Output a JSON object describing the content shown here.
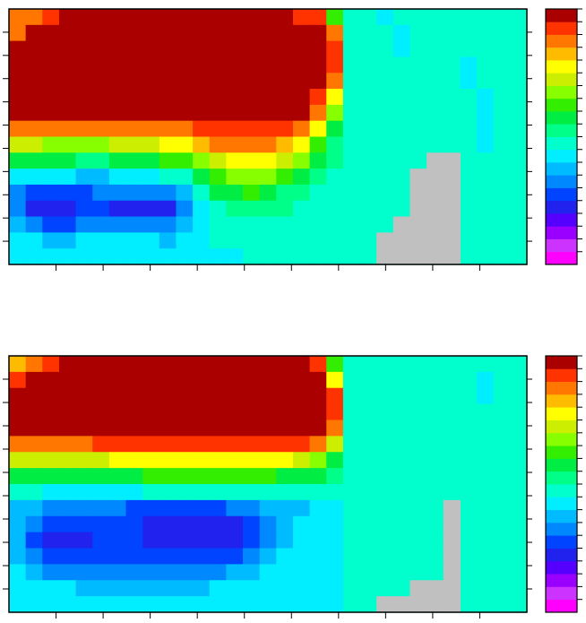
{
  "chart_data": [
    {
      "type": "heatmap",
      "title": "",
      "xlabel": "",
      "ylabel": "",
      "grid": false,
      "colorbar": {
        "levels": 20,
        "colors": [
          "#ff00ff",
          "#cc33ff",
          "#9900ff",
          "#5500ff",
          "#2222ee",
          "#0044ff",
          "#0088ff",
          "#00bbff",
          "#00eeff",
          "#00ffcc",
          "#00ff88",
          "#00ee44",
          "#33ee00",
          "#88ff00",
          "#ccee00",
          "#ffff00",
          "#ffbb00",
          "#ff7700",
          "#ff3300",
          "#ee0000"
        ]
      },
      "top_color": "#aa0000",
      "land_color": "#c0c0c0",
      "grid_values": [
        [
          17,
          17,
          18,
          19,
          19,
          19,
          19,
          19,
          19,
          19,
          19,
          19,
          19,
          19,
          19,
          19,
          19,
          18,
          18,
          12,
          9,
          9,
          8,
          9,
          9,
          9,
          9,
          9,
          9,
          9,
          9
        ],
        [
          17,
          19,
          19,
          19,
          19,
          19,
          19,
          19,
          19,
          19,
          19,
          19,
          19,
          19,
          19,
          19,
          19,
          19,
          19,
          17,
          9,
          9,
          9,
          8,
          9,
          9,
          9,
          9,
          9,
          9,
          9
        ],
        [
          19,
          19,
          19,
          19,
          19,
          19,
          19,
          19,
          19,
          19,
          19,
          19,
          19,
          19,
          19,
          19,
          19,
          19,
          19,
          18,
          9,
          9,
          9,
          8,
          9,
          9,
          9,
          9,
          9,
          9,
          9
        ],
        [
          19,
          19,
          19,
          19,
          19,
          19,
          19,
          19,
          19,
          19,
          19,
          19,
          19,
          19,
          19,
          19,
          19,
          19,
          19,
          18,
          9,
          9,
          9,
          9,
          9,
          9,
          9,
          8,
          9,
          9,
          9
        ],
        [
          19,
          19,
          19,
          19,
          19,
          19,
          19,
          19,
          19,
          19,
          19,
          19,
          19,
          19,
          19,
          19,
          19,
          19,
          19,
          17,
          9,
          9,
          9,
          9,
          9,
          9,
          9,
          8,
          9,
          9,
          9
        ],
        [
          19,
          19,
          19,
          19,
          19,
          19,
          19,
          19,
          19,
          19,
          19,
          19,
          19,
          19,
          19,
          19,
          19,
          19,
          18,
          15,
          9,
          9,
          9,
          9,
          9,
          9,
          9,
          9,
          8,
          9,
          9
        ],
        [
          19,
          19,
          19,
          19,
          19,
          19,
          19,
          19,
          19,
          19,
          19,
          19,
          19,
          19,
          19,
          19,
          19,
          19,
          17,
          13,
          9,
          9,
          9,
          9,
          9,
          9,
          9,
          9,
          8,
          9,
          9
        ],
        [
          17,
          17,
          17,
          17,
          17,
          17,
          17,
          17,
          17,
          17,
          17,
          18,
          18,
          18,
          18,
          18,
          18,
          17,
          15,
          11,
          9,
          9,
          9,
          9,
          9,
          9,
          9,
          9,
          8,
          9,
          9
        ],
        [
          14,
          14,
          13,
          13,
          13,
          13,
          14,
          14,
          14,
          15,
          15,
          16,
          17,
          17,
          17,
          17,
          16,
          15,
          12,
          10,
          9,
          9,
          9,
          9,
          9,
          9,
          9,
          9,
          8,
          9,
          9
        ],
        [
          11,
          11,
          11,
          11,
          10,
          10,
          11,
          11,
          11,
          12,
          12,
          13,
          14,
          15,
          15,
          15,
          14,
          13,
          11,
          10,
          9,
          9,
          9,
          9,
          9,
          9,
          9,
          9,
          9,
          9,
          9
        ],
        [
          8,
          8,
          8,
          8,
          7,
          7,
          8,
          8,
          8,
          9,
          9,
          11,
          12,
          13,
          13,
          13,
          12,
          11,
          10,
          9,
          9,
          9,
          9,
          9,
          9,
          9,
          9,
          9,
          9,
          9,
          9
        ],
        [
          6,
          5,
          5,
          5,
          5,
          6,
          6,
          6,
          6,
          6,
          7,
          9,
          11,
          11,
          12,
          11,
          10,
          10,
          9,
          9,
          9,
          9,
          9,
          9,
          9,
          9,
          9,
          9,
          9,
          9,
          9
        ],
        [
          6,
          4,
          4,
          4,
          5,
          5,
          4,
          4,
          4,
          4,
          6,
          8,
          9,
          10,
          10,
          10,
          10,
          9,
          9,
          9,
          9,
          9,
          9,
          9,
          9,
          9,
          9,
          9,
          9,
          9,
          9
        ],
        [
          7,
          6,
          5,
          5,
          6,
          6,
          6,
          6,
          6,
          6,
          7,
          8,
          9,
          9,
          9,
          9,
          9,
          9,
          9,
          9,
          9,
          9,
          9,
          9,
          9,
          9,
          9,
          9,
          9,
          9,
          9
        ],
        [
          8,
          8,
          7,
          7,
          8,
          8,
          8,
          8,
          8,
          7,
          8,
          8,
          9,
          9,
          9,
          9,
          9,
          9,
          9,
          9,
          9,
          9,
          9,
          9,
          9,
          9,
          9,
          9,
          9,
          9,
          9
        ],
        [
          8,
          8,
          8,
          8,
          8,
          8,
          8,
          8,
          8,
          8,
          8,
          8,
          8,
          8,
          9,
          9,
          9,
          9,
          9,
          9,
          9,
          9,
          9,
          9,
          9,
          9,
          9,
          9,
          9,
          9,
          9
        ]
      ],
      "land_cells": [
        [
          9,
          25
        ],
        [
          9,
          26
        ],
        [
          10,
          24
        ],
        [
          10,
          25
        ],
        [
          10,
          26
        ],
        [
          11,
          24
        ],
        [
          11,
          25
        ],
        [
          11,
          26
        ],
        [
          12,
          24
        ],
        [
          12,
          25
        ],
        [
          12,
          26
        ],
        [
          13,
          23
        ],
        [
          13,
          24
        ],
        [
          13,
          25
        ],
        [
          13,
          26
        ],
        [
          14,
          22
        ],
        [
          14,
          23
        ],
        [
          14,
          24
        ],
        [
          14,
          25
        ],
        [
          14,
          26
        ],
        [
          15,
          22
        ],
        [
          15,
          23
        ],
        [
          15,
          24
        ],
        [
          15,
          25
        ],
        [
          15,
          26
        ]
      ]
    },
    {
      "type": "heatmap",
      "title": "",
      "xlabel": "",
      "ylabel": "",
      "grid": false,
      "colorbar": {
        "levels": 20,
        "colors": [
          "#ff00ff",
          "#cc33ff",
          "#9900ff",
          "#5500ff",
          "#2222ee",
          "#0044ff",
          "#0088ff",
          "#00bbff",
          "#00eeff",
          "#00ffcc",
          "#00ff88",
          "#00ee44",
          "#33ee00",
          "#88ff00",
          "#ccee00",
          "#ffff00",
          "#ffbb00",
          "#ff7700",
          "#ff3300",
          "#ee0000"
        ]
      },
      "top_color": "#aa0000",
      "land_color": "#c0c0c0",
      "grid_values": [
        [
          16,
          17,
          18,
          19,
          19,
          19,
          19,
          19,
          19,
          19,
          19,
          19,
          19,
          19,
          19,
          19,
          19,
          19,
          18,
          12,
          9,
          9,
          9,
          9,
          9,
          9,
          9,
          9,
          9,
          9,
          9
        ],
        [
          18,
          19,
          19,
          19,
          19,
          19,
          19,
          19,
          19,
          19,
          19,
          19,
          19,
          19,
          19,
          19,
          19,
          19,
          19,
          15,
          9,
          9,
          9,
          9,
          9,
          9,
          9,
          9,
          8,
          9,
          9
        ],
        [
          19,
          19,
          19,
          19,
          19,
          19,
          19,
          19,
          19,
          19,
          19,
          19,
          19,
          19,
          19,
          19,
          19,
          19,
          19,
          18,
          9,
          9,
          9,
          9,
          9,
          9,
          9,
          9,
          8,
          9,
          9
        ],
        [
          19,
          19,
          19,
          19,
          19,
          19,
          19,
          19,
          19,
          19,
          19,
          19,
          19,
          19,
          19,
          19,
          19,
          19,
          19,
          18,
          9,
          9,
          9,
          9,
          9,
          9,
          9,
          9,
          9,
          9,
          9
        ],
        [
          19,
          19,
          19,
          19,
          19,
          19,
          19,
          19,
          19,
          19,
          19,
          19,
          19,
          19,
          19,
          19,
          19,
          19,
          19,
          17,
          9,
          9,
          9,
          9,
          9,
          9,
          9,
          9,
          9,
          9,
          9
        ],
        [
          17,
          17,
          17,
          17,
          17,
          18,
          18,
          18,
          18,
          18,
          18,
          18,
          18,
          18,
          18,
          18,
          18,
          18,
          17,
          14,
          9,
          9,
          9,
          9,
          9,
          9,
          9,
          9,
          9,
          9,
          9
        ],
        [
          14,
          14,
          14,
          14,
          14,
          14,
          15,
          15,
          15,
          15,
          15,
          15,
          15,
          15,
          15,
          15,
          15,
          14,
          13,
          11,
          9,
          9,
          9,
          9,
          9,
          9,
          9,
          9,
          9,
          9,
          9
        ],
        [
          11,
          11,
          11,
          11,
          11,
          11,
          11,
          11,
          12,
          12,
          12,
          12,
          12,
          12,
          12,
          12,
          11,
          11,
          11,
          10,
          9,
          9,
          9,
          9,
          9,
          9,
          9,
          9,
          9,
          9,
          9
        ],
        [
          9,
          9,
          8,
          8,
          8,
          8,
          8,
          8,
          9,
          9,
          9,
          9,
          9,
          9,
          9,
          9,
          9,
          9,
          9,
          9,
          9,
          9,
          9,
          9,
          9,
          9,
          9,
          9,
          9,
          9,
          9
        ],
        [
          7,
          7,
          6,
          6,
          6,
          6,
          6,
          5,
          5,
          5,
          5,
          5,
          5,
          6,
          6,
          7,
          7,
          7,
          8,
          8,
          9,
          9,
          9,
          9,
          9,
          9,
          9,
          9,
          9,
          9,
          9
        ],
        [
          7,
          6,
          5,
          5,
          5,
          5,
          5,
          5,
          4,
          4,
          4,
          4,
          4,
          4,
          5,
          6,
          7,
          8,
          8,
          8,
          9,
          9,
          9,
          9,
          9,
          9,
          9,
          9,
          9,
          9,
          9
        ],
        [
          7,
          5,
          4,
          4,
          4,
          5,
          5,
          5,
          4,
          4,
          4,
          4,
          4,
          4,
          5,
          6,
          7,
          8,
          8,
          8,
          9,
          9,
          9,
          9,
          9,
          9,
          9,
          9,
          9,
          9,
          9
        ],
        [
          7,
          6,
          5,
          5,
          5,
          5,
          5,
          5,
          5,
          5,
          5,
          5,
          5,
          5,
          6,
          7,
          8,
          8,
          8,
          8,
          9,
          9,
          9,
          9,
          9,
          9,
          9,
          9,
          9,
          9,
          9
        ],
        [
          8,
          7,
          6,
          6,
          6,
          6,
          6,
          6,
          6,
          6,
          6,
          6,
          6,
          7,
          7,
          8,
          8,
          8,
          8,
          8,
          9,
          9,
          9,
          9,
          9,
          9,
          9,
          9,
          9,
          9,
          9
        ],
        [
          8,
          8,
          8,
          8,
          7,
          7,
          7,
          7,
          7,
          7,
          7,
          7,
          8,
          8,
          8,
          8,
          8,
          8,
          8,
          8,
          9,
          9,
          9,
          9,
          9,
          9,
          9,
          9,
          9,
          9,
          9
        ],
        [
          8,
          8,
          8,
          8,
          8,
          8,
          8,
          8,
          8,
          8,
          8,
          8,
          8,
          8,
          8,
          8,
          8,
          8,
          8,
          8,
          9,
          9,
          9,
          9,
          9,
          9,
          9,
          9,
          9,
          9,
          9
        ]
      ],
      "land_cells": [
        [
          9,
          26
        ],
        [
          10,
          26
        ],
        [
          11,
          26
        ],
        [
          12,
          26
        ],
        [
          13,
          26
        ],
        [
          14,
          24
        ],
        [
          14,
          25
        ],
        [
          14,
          26
        ],
        [
          15,
          22
        ],
        [
          15,
          23
        ],
        [
          15,
          24
        ],
        [
          15,
          25
        ],
        [
          15,
          26
        ]
      ]
    }
  ]
}
